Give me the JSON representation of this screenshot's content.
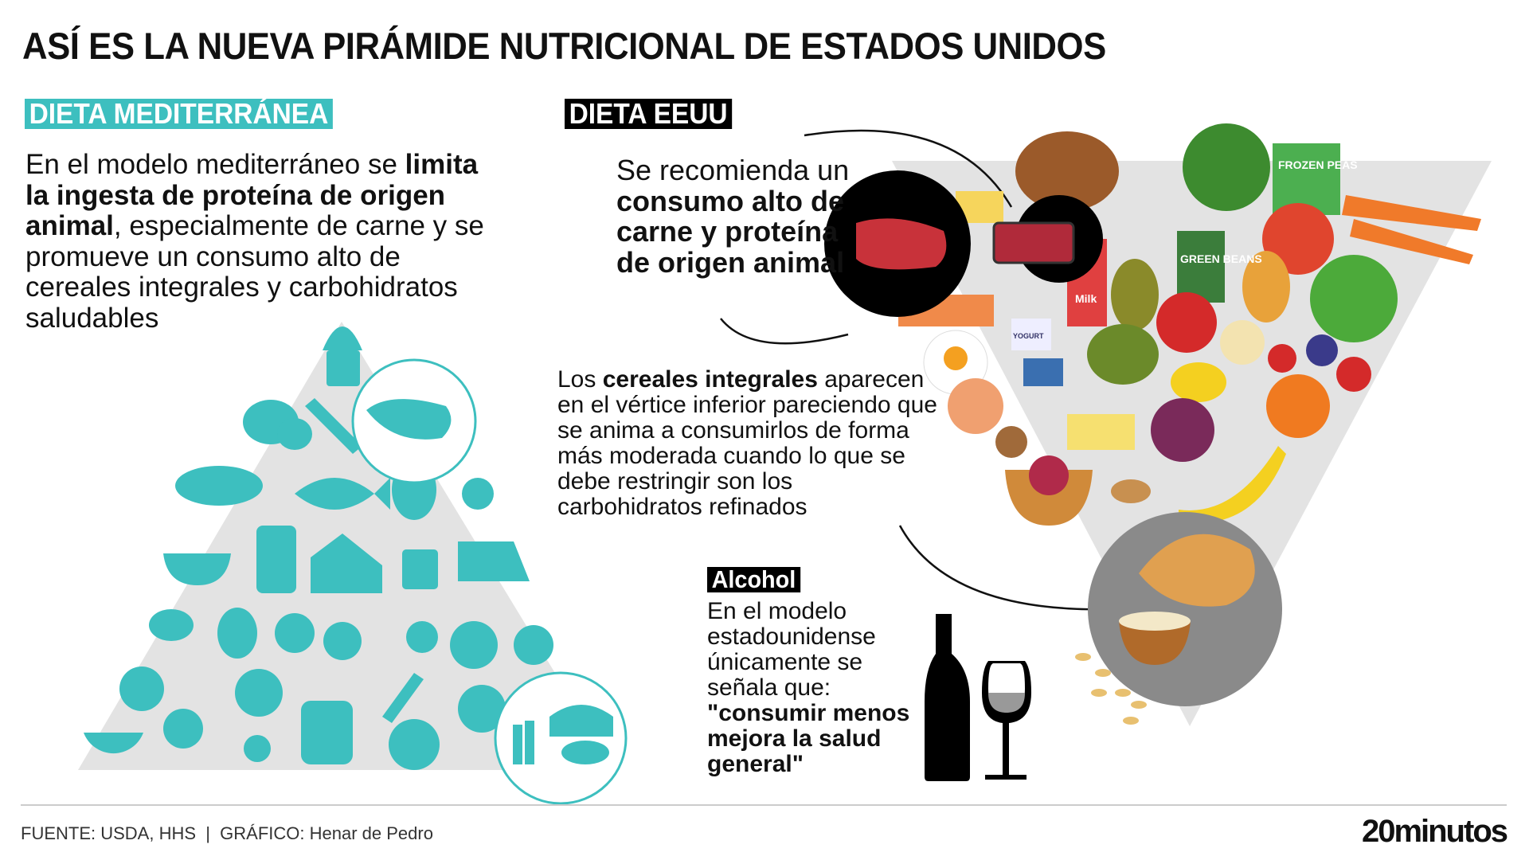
{
  "title": "ASÍ ES LA NUEVA PIRÁMIDE NUTRICIONAL DE ESTADOS UNIDOS",
  "mediterranean": {
    "label": "DIETA MEDITERRÁNEA",
    "text": {
      "t1": "En el modelo mediterráneo se ",
      "b1": "limita la ingesta de proteína de origen animal",
      "t2": ", especialmente de carne y se promueve un consumo alto de cereales integrales y carbohidratos saludables"
    }
  },
  "us": {
    "label": "DIETA EEUU",
    "text": {
      "t1": "Se recomienda un ",
      "b1": "consumo alto de carne y proteína de origen animal"
    },
    "cereals": {
      "t1": "Los ",
      "b1": "cereales integrales",
      "t2": " aparecen en el vértice inferior pareciendo que se anima a consumirlos de forma más moderada cuando lo que se debe restringir son los carbohidratos refinados"
    },
    "food_labels": {
      "peas": "FROZEN PEAS",
      "beans": "GREEN BEANS",
      "milk": "Milk",
      "yogurt": "YOGURT"
    }
  },
  "alcohol": {
    "label": "Alcohol",
    "t1": "En el modelo estadounidense únicamente se señala que: ",
    "b1": "\"consumir menos mejora la salud general\""
  },
  "footer": {
    "source": "FUENTE: USDA, HHS  |  GRÁFICO: Henar de Pedro",
    "logo": "20minutos"
  },
  "colors": {
    "teal": "#3dbfbf",
    "gray": "#e3e3e3",
    "black": "#000000"
  }
}
